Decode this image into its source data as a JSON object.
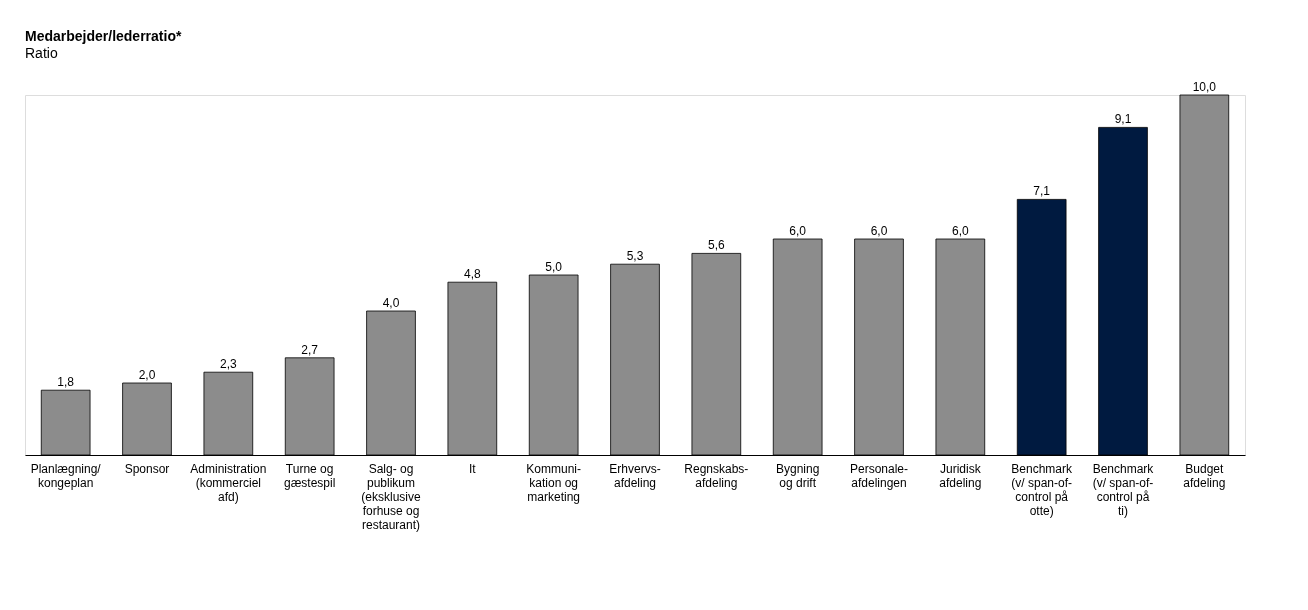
{
  "chart_data": {
    "type": "bar",
    "title": "Medarbejder/lederratio*",
    "subtitle": "Ratio",
    "categories": [
      "Planlægning/\nkongeplan",
      "Sponsor",
      "Administration\n(kommerciel\nafd)",
      "Turne og\ngæstespil",
      "Salg- og\npublikum\n(eksklusive\nforhuse og\nrestaurant)",
      "It",
      "Kommuni-\nkation og\nmarketing",
      "Erhvervs-\nafdeling",
      "Regnskabs-\nafdeling",
      "Bygning\nog drift",
      "Personale-\nafdelingen",
      "Juridisk\nafdeling",
      "Benchmark\n(v/ span-of-\ncontrol på\notte)",
      "Benchmark\n(v/ span-of-\ncontrol på\nti)",
      "Budget\nafdeling"
    ],
    "values": [
      1.8,
      2.0,
      2.3,
      2.7,
      4.0,
      4.8,
      5.0,
      5.3,
      5.6,
      6.0,
      6.0,
      6.0,
      7.1,
      9.1,
      10.0
    ],
    "value_labels": [
      "1,8",
      "2,0",
      "2,3",
      "2,7",
      "4,0",
      "4,8",
      "5,0",
      "5,3",
      "5,6",
      "6,0",
      "6,0",
      "6,0",
      "7,1",
      "9,1",
      "10,0"
    ],
    "colors": [
      "#8c8c8c",
      "#8c8c8c",
      "#8c8c8c",
      "#8c8c8c",
      "#8c8c8c",
      "#8c8c8c",
      "#8c8c8c",
      "#8c8c8c",
      "#8c8c8c",
      "#8c8c8c",
      "#8c8c8c",
      "#8c8c8c",
      "#001a40",
      "#001a40",
      "#8c8c8c"
    ],
    "tick_labels": "x",
    "grid": false
  }
}
